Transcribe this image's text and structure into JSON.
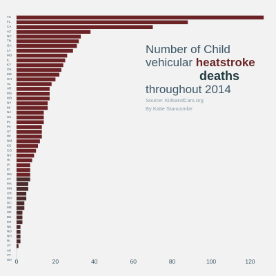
{
  "title": {
    "line1": "Number of Child",
    "line2_prefix": "vehicular ",
    "line2_accent": "heatstroke",
    "line3_accent": "deaths",
    "line4": "throughout 2014",
    "source": "Source: KidsandCars.org",
    "author": "By Katie Stancombe"
  },
  "colors": {
    "background": "#f2f2f2",
    "bar": "#6b2326",
    "bar_light": "#4a2a2a",
    "axis_text": "#3a5666",
    "title_text": "#3a5666",
    "accent": "#6b2326"
  },
  "chart_data": {
    "type": "bar",
    "orientation": "horizontal",
    "categories": [
      "TX",
      "FL",
      "CA",
      "AZ",
      "NC",
      "TN",
      "GA",
      "LA",
      "MO",
      "IL",
      "KY",
      "OK",
      "MS",
      "OH",
      "AL",
      "AR",
      "MS",
      "MD",
      "NY",
      "MI",
      "NJ",
      "SC",
      "IN",
      "PA",
      "UT",
      "WI",
      "NM",
      "KS",
      "CO",
      "NV",
      "HI",
      "IA",
      "ID",
      "WA",
      "CT",
      "MA",
      "MN",
      "OR",
      "WV",
      "DC",
      "ME",
      "SD",
      "DE",
      "MT",
      "NE",
      "ND",
      "NH",
      "RI",
      "VT",
      "AK",
      "VT",
      "WY"
    ],
    "values": [
      127,
      88,
      70,
      38,
      33,
      32,
      31,
      29,
      26,
      25,
      24,
      23,
      22,
      20,
      18,
      17,
      17,
      17,
      16,
      16,
      14,
      14,
      14,
      13,
      13,
      13,
      12,
      11,
      10,
      9,
      8,
      7,
      7,
      7,
      7,
      6,
      6,
      5,
      5,
      4,
      4,
      3,
      3,
      3,
      2,
      2,
      2,
      2,
      1,
      0,
      0,
      0
    ],
    "xlim": [
      0,
      128
    ],
    "xticks": [
      0,
      20,
      40,
      60,
      80,
      100,
      120
    ],
    "grid": false,
    "legend": "none"
  }
}
